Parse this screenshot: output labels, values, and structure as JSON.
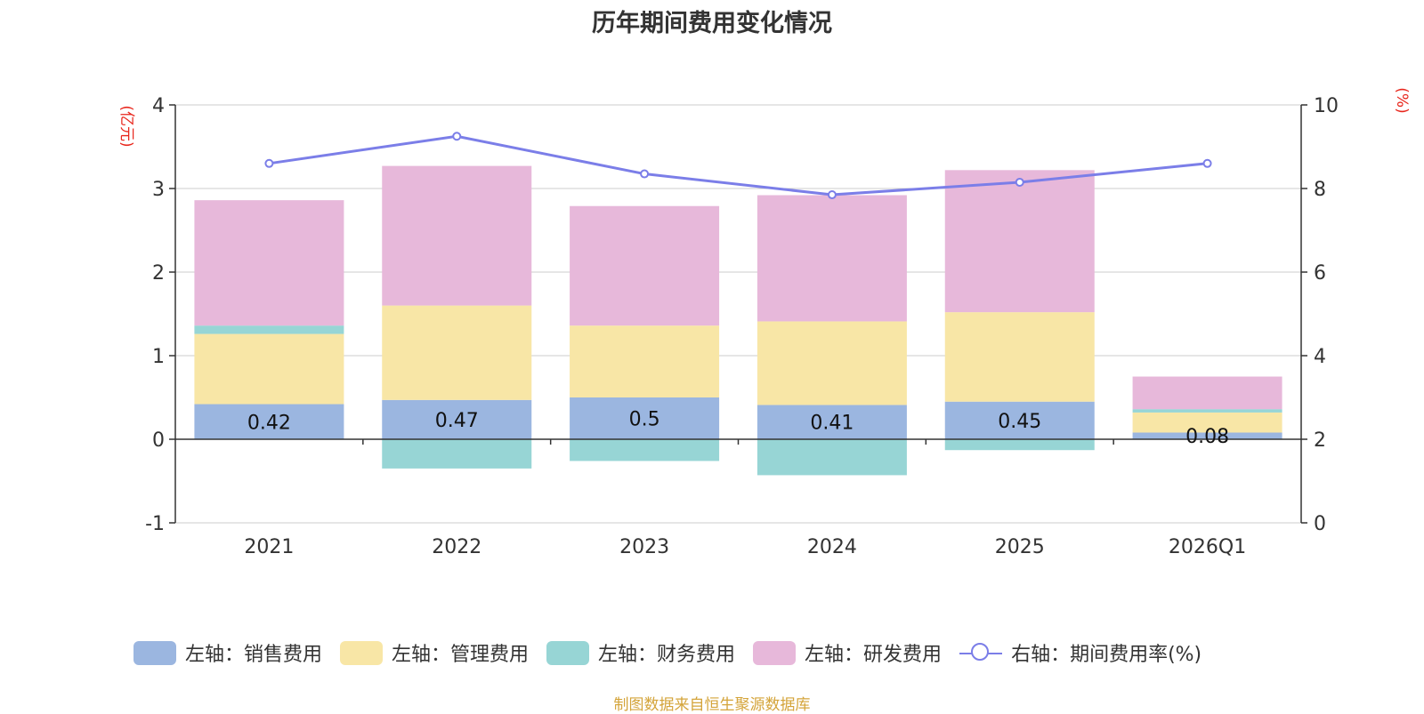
{
  "chart_data": {
    "type": "bar",
    "title": "历年期间费用变化情况",
    "categories": [
      "2021",
      "2022",
      "2023",
      "2024",
      "2025",
      "2026Q1"
    ],
    "left_axis": {
      "unit_label": "(亿元)",
      "ylim": [
        -1,
        4
      ],
      "ticks": [
        "4",
        "3",
        "2",
        "1",
        "0",
        "-1"
      ]
    },
    "right_axis": {
      "unit_label": "(%)",
      "ylim": [
        0,
        10
      ],
      "ticks": [
        "10",
        "8",
        "6",
        "4",
        "2",
        "0"
      ]
    },
    "series": [
      {
        "name": "左轴：销售费用",
        "axis": "left",
        "color": "#9bb6e0",
        "values": [
          0.42,
          0.47,
          0.5,
          0.41,
          0.45,
          0.08
        ],
        "labels": [
          "0.42",
          "0.47",
          "0.5",
          "0.41",
          "0.45",
          "0.08"
        ]
      },
      {
        "name": "左轴：管理费用",
        "axis": "left",
        "color": "#f8e6a6",
        "values": [
          0.84,
          1.13,
          0.86,
          1.0,
          1.07,
          0.24
        ]
      },
      {
        "name": "左轴：财务费用",
        "axis": "left",
        "color": "#97d5d5",
        "values": [
          0.1,
          -0.35,
          -0.26,
          -0.43,
          -0.13,
          0.04
        ]
      },
      {
        "name": "左轴：研发费用",
        "axis": "left",
        "color": "#e7b8da",
        "values": [
          1.5,
          1.67,
          1.43,
          1.51,
          1.7,
          0.39
        ]
      },
      {
        "name": "右轴：期间费用率(%)",
        "axis": "right",
        "type": "line",
        "color": "#7b7ee8",
        "values": [
          8.6,
          9.25,
          8.35,
          7.85,
          8.15,
          8.6
        ]
      }
    ],
    "legend_position": "bottom"
  },
  "source": "制图数据来自恒生聚源数据库"
}
